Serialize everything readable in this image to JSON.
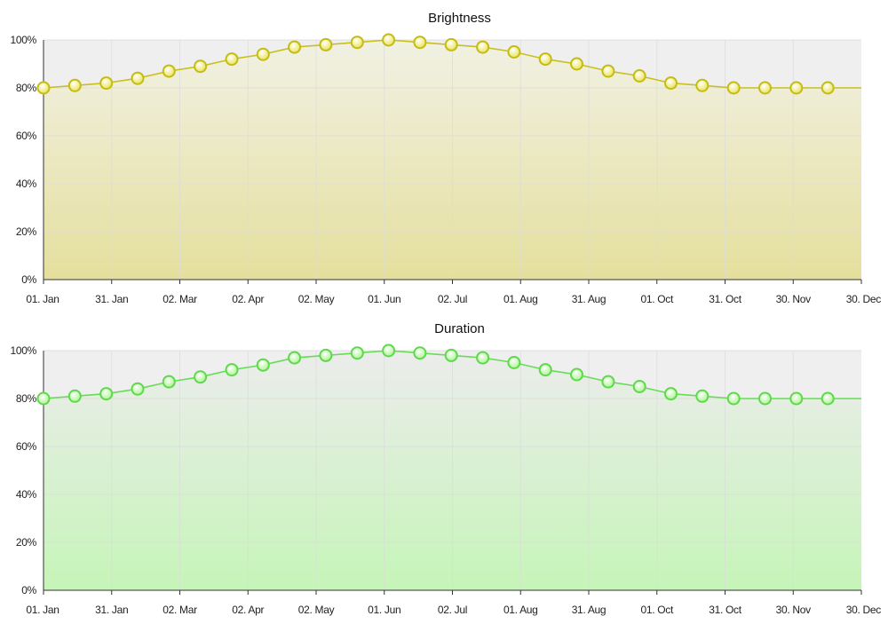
{
  "chart_data": [
    {
      "type": "area",
      "title": "Brightness",
      "xlabel": "",
      "ylabel": "",
      "x_tick_labels": [
        "01. Jan",
        "31. Jan",
        "02. Mar",
        "02. Apr",
        "02. May",
        "01. Jun",
        "02. Jul",
        "01. Aug",
        "31. Aug",
        "01. Oct",
        "31. Oct",
        "30. Nov",
        "30. Dec"
      ],
      "y_tick_labels": [
        "0%",
        "20%",
        "40%",
        "60%",
        "80%",
        "100%"
      ],
      "ylim": [
        0,
        100
      ],
      "xlim": [
        "2024-01-01",
        "2024-12-31"
      ],
      "grid": true,
      "legend": "none",
      "colors": {
        "line": "#c8c01e",
        "marker_fill": "#e8e24a",
        "marker_stroke": "#c4bc16",
        "fill_top": "#f1f1e4",
        "fill_bottom": "#e5df9d",
        "plot_bg": "#efefef"
      },
      "series": [
        {
          "x": [
            "2024-01-01",
            "2024-01-15",
            "2024-01-29",
            "2024-02-12",
            "2024-02-26",
            "2024-03-11",
            "2024-03-25",
            "2024-04-08",
            "2024-04-22",
            "2024-05-06",
            "2024-05-20",
            "2024-06-03",
            "2024-06-17",
            "2024-07-01",
            "2024-07-15",
            "2024-07-29",
            "2024-08-12",
            "2024-08-26",
            "2024-09-09",
            "2024-09-23",
            "2024-10-07",
            "2024-10-21",
            "2024-11-04",
            "2024-11-18",
            "2024-12-02",
            "2024-12-16"
          ],
          "values": [
            80,
            81,
            82,
            84,
            87,
            89,
            92,
            94,
            97,
            98,
            99,
            100,
            99,
            98,
            97,
            95,
            92,
            90,
            87,
            85,
            82,
            81,
            80,
            80,
            80,
            80
          ]
        }
      ]
    },
    {
      "type": "area",
      "title": "Duration",
      "xlabel": "",
      "ylabel": "",
      "x_tick_labels": [
        "01. Jan",
        "31. Jan",
        "02. Mar",
        "02. Apr",
        "02. May",
        "01. Jun",
        "02. Jul",
        "01. Aug",
        "31. Aug",
        "01. Oct",
        "31. Oct",
        "30. Nov",
        "30. Dec"
      ],
      "y_tick_labels": [
        "0%",
        "20%",
        "40%",
        "60%",
        "80%",
        "100%"
      ],
      "ylim": [
        0,
        100
      ],
      "xlim": [
        "2024-01-01",
        "2024-12-31"
      ],
      "grid": true,
      "legend": "none",
      "colors": {
        "line": "#66dd55",
        "marker_fill": "#a6f58c",
        "marker_stroke": "#5fd84c",
        "fill_top": "#ececec",
        "fill_bottom": "#c6f5b8",
        "plot_bg": "#efefef"
      },
      "series": [
        {
          "x": [
            "2024-01-01",
            "2024-01-15",
            "2024-01-29",
            "2024-02-12",
            "2024-02-26",
            "2024-03-11",
            "2024-03-25",
            "2024-04-08",
            "2024-04-22",
            "2024-05-06",
            "2024-05-20",
            "2024-06-03",
            "2024-06-17",
            "2024-07-01",
            "2024-07-15",
            "2024-07-29",
            "2024-08-12",
            "2024-08-26",
            "2024-09-09",
            "2024-09-23",
            "2024-10-07",
            "2024-10-21",
            "2024-11-04",
            "2024-11-18",
            "2024-12-02",
            "2024-12-16"
          ],
          "values": [
            80,
            81,
            82,
            84,
            87,
            89,
            92,
            94,
            97,
            98,
            99,
            100,
            99,
            98,
            97,
            95,
            92,
            90,
            87,
            85,
            82,
            81,
            80,
            80,
            80,
            80
          ]
        }
      ]
    }
  ]
}
